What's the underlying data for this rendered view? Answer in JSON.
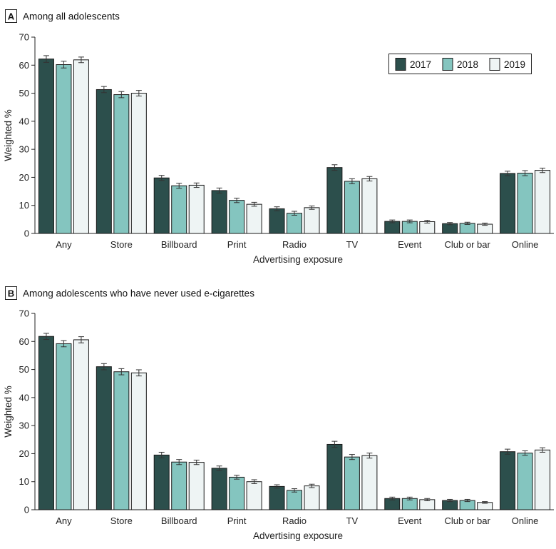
{
  "series_names": [
    "2017",
    "2018",
    "2019"
  ],
  "colors": {
    "2017": "#2c4f4c",
    "2018": "#84c5bf",
    "2019": "#eef4f4"
  },
  "chart_data": [
    {
      "type": "bar",
      "panel_letter": "A",
      "title": "Among all adolescents",
      "xlabel": "Advertising exposure",
      "ylabel": "Weighted %",
      "ylim": [
        0,
        70
      ],
      "yticks": [
        0,
        10,
        20,
        30,
        40,
        50,
        60,
        70
      ],
      "legend": "top-right",
      "categories": [
        "Any",
        "Store",
        "Billboard",
        "Print",
        "Radio",
        "TV",
        "Event",
        "Club or bar",
        "Online"
      ],
      "series": [
        {
          "name": "2017",
          "values": [
            62.2,
            51.3,
            19.8,
            15.3,
            8.8,
            23.5,
            4.3,
            3.5,
            21.4
          ],
          "err": [
            1.2,
            1.1,
            0.9,
            0.9,
            0.7,
            1.0,
            0.5,
            0.4,
            0.8
          ]
        },
        {
          "name": "2018",
          "values": [
            60.2,
            49.5,
            17.0,
            11.8,
            7.2,
            18.6,
            4.3,
            3.6,
            21.5
          ],
          "err": [
            1.2,
            1.1,
            0.9,
            0.8,
            0.7,
            0.9,
            0.5,
            0.4,
            0.9
          ]
        },
        {
          "name": "2019",
          "values": [
            61.9,
            50.0,
            17.2,
            10.4,
            9.2,
            19.5,
            4.2,
            3.3,
            22.5
          ],
          "err": [
            1.0,
            1.0,
            0.8,
            0.7,
            0.6,
            0.8,
            0.5,
            0.4,
            0.8
          ]
        }
      ]
    },
    {
      "type": "bar",
      "panel_letter": "B",
      "title": "Among adolescents who have never used e-cigarettes",
      "xlabel": "Advertising exposure",
      "ylabel": "Weighted %",
      "ylim": [
        0,
        70
      ],
      "yticks": [
        0,
        10,
        20,
        30,
        40,
        50,
        60,
        70
      ],
      "categories": [
        "Any",
        "Store",
        "Billboard",
        "Print",
        "Radio",
        "TV",
        "Event",
        "Club or bar",
        "Online"
      ],
      "series": [
        {
          "name": "2017",
          "values": [
            61.8,
            51.0,
            19.5,
            14.8,
            8.3,
            23.3,
            4.0,
            3.3,
            20.7
          ],
          "err": [
            1.1,
            1.1,
            1.0,
            0.8,
            0.6,
            1.1,
            0.5,
            0.4,
            0.9
          ]
        },
        {
          "name": "2018",
          "values": [
            59.2,
            49.2,
            17.0,
            11.6,
            6.9,
            18.8,
            4.0,
            3.3,
            20.2
          ],
          "err": [
            1.1,
            1.1,
            0.9,
            0.7,
            0.6,
            0.9,
            0.5,
            0.4,
            0.8
          ]
        },
        {
          "name": "2019",
          "values": [
            60.6,
            48.8,
            16.9,
            10.0,
            8.5,
            19.3,
            3.6,
            2.6,
            21.3
          ],
          "err": [
            1.1,
            1.1,
            0.8,
            0.7,
            0.6,
            0.9,
            0.4,
            0.3,
            0.8
          ]
        }
      ]
    }
  ]
}
